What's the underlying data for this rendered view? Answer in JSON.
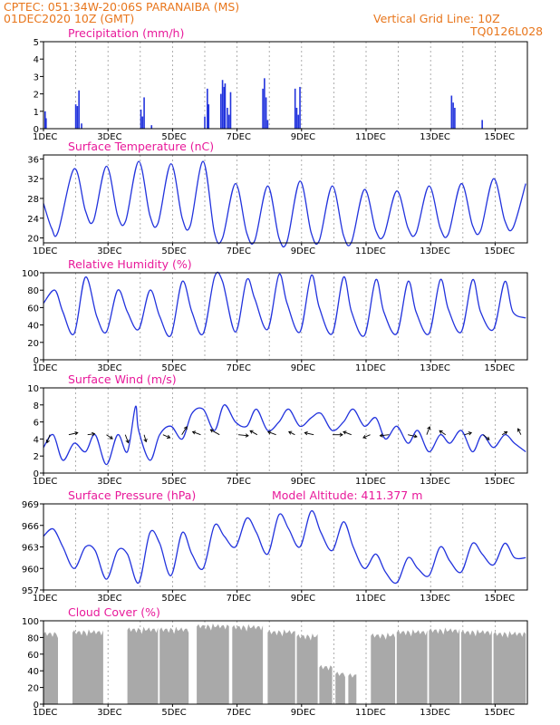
{
  "header": {
    "line1": "CPTEC:   051:34W-20:06S   PARANAIBA (MS)",
    "line2": "01DEC2020 10Z (GMT)",
    "grid_note": "Vertical Grid Line: 10Z",
    "code": "TQ0126L028",
    "model_altitude": "Model Altitude: 411.377 m"
  },
  "x_ticks": [
    "1DEC",
    "3DEC",
    "5DEC",
    "7DEC",
    "9DEC",
    "11DEC",
    "13DEC",
    "15DEC"
  ],
  "colors": {
    "header": "#e8761c",
    "title": "#e8199a",
    "series": "#2233dd",
    "cloud": "#a9a9a9"
  },
  "chart_data": [
    {
      "type": "bar",
      "title": "Precipitation (mm/h)",
      "ylim": [
        0,
        5
      ],
      "yticks": [
        "0",
        "1",
        "2",
        "3",
        "4",
        "5"
      ],
      "x_range_days": [
        1.0,
        16.0
      ],
      "series": [
        {
          "x": [
            1.05,
            1.08,
            2.0,
            2.05,
            2.1,
            2.18,
            4.02,
            4.07,
            4.12,
            4.35,
            6.0,
            6.08,
            6.12,
            6.5,
            6.55,
            6.6,
            6.63,
            6.7,
            6.75,
            6.8,
            7.8,
            7.85,
            7.9,
            7.95,
            8.8,
            8.85,
            8.9,
            8.95,
            13.65,
            13.7,
            13.75,
            14.6
          ],
          "values": [
            1.0,
            0.6,
            1.4,
            1.3,
            2.2,
            0.3,
            1.1,
            0.7,
            1.8,
            0.2,
            0.7,
            2.3,
            1.4,
            2.0,
            2.8,
            2.4,
            2.6,
            1.2,
            0.8,
            2.1,
            2.3,
            2.9,
            1.8,
            0.5,
            2.3,
            1.2,
            0.8,
            2.4,
            1.9,
            1.5,
            1.2,
            0.5
          ]
        }
      ]
    },
    {
      "type": "line",
      "title": "Surface Temperature (nC)",
      "ylim": [
        19,
        36.8
      ],
      "yticks": [
        "20",
        "24",
        "28",
        "32",
        "36"
      ],
      "series": [
        {
          "x": [
            1.0,
            1.25,
            1.45,
            1.95,
            2.3,
            2.55,
            2.95,
            3.3,
            3.55,
            3.95,
            4.3,
            4.55,
            4.95,
            5.3,
            5.55,
            5.95,
            6.3,
            6.55,
            6.95,
            7.3,
            7.55,
            7.95,
            8.3,
            8.55,
            8.95,
            9.3,
            9.55,
            9.95,
            10.3,
            10.55,
            10.95,
            11.3,
            11.55,
            11.95,
            12.3,
            12.55,
            12.95,
            13.3,
            13.55,
            13.95,
            14.3,
            14.55,
            14.95,
            15.3,
            15.55,
            15.95
          ],
          "values": [
            27.0,
            22.0,
            21.2,
            34.0,
            25.5,
            23.5,
            34.5,
            24.5,
            23.5,
            35.5,
            24.5,
            23.0,
            35.0,
            24.0,
            22.5,
            35.5,
            21.0,
            20.0,
            31.0,
            21.0,
            19.5,
            30.5,
            20.0,
            19.3,
            31.5,
            21.0,
            19.5,
            30.5,
            20.5,
            19.2,
            29.8,
            21.5,
            20.5,
            29.5,
            22.0,
            21.0,
            30.5,
            22.0,
            20.8,
            31.0,
            22.5,
            21.5,
            32.0,
            23.5,
            22.0,
            31.0
          ]
        }
      ]
    },
    {
      "type": "line",
      "title": "Relative Humidity (%)",
      "ylim": [
        0,
        100
      ],
      "yticks": [
        "0",
        "20",
        "40",
        "60",
        "80",
        "100"
      ],
      "series": [
        {
          "x": [
            1.0,
            1.35,
            1.6,
            1.95,
            2.3,
            2.65,
            2.95,
            3.3,
            3.6,
            3.95,
            4.3,
            4.6,
            4.95,
            5.3,
            5.6,
            5.95,
            6.3,
            6.55,
            6.95,
            7.3,
            7.55,
            7.95,
            8.3,
            8.55,
            8.95,
            9.3,
            9.55,
            9.95,
            10.3,
            10.55,
            10.95,
            11.3,
            11.55,
            11.95,
            12.3,
            12.55,
            12.95,
            13.3,
            13.55,
            13.95,
            14.3,
            14.55,
            14.95,
            15.3,
            15.55,
            15.95
          ],
          "values": [
            65.0,
            80.0,
            55.0,
            30.0,
            95.0,
            50.0,
            32.0,
            80.0,
            55.0,
            35.0,
            80.0,
            50.0,
            28.0,
            90.0,
            55.0,
            30.0,
            95.0,
            90.0,
            32.0,
            92.0,
            70.0,
            35.0,
            98.0,
            65.0,
            32.0,
            97.0,
            60.0,
            30.0,
            95.0,
            55.0,
            28.0,
            92.0,
            55.0,
            30.0,
            90.0,
            55.0,
            30.0,
            92.0,
            58.0,
            32.0,
            92.0,
            55.0,
            35.0,
            90.0,
            55.0,
            48.0
          ]
        }
      ]
    },
    {
      "type": "line",
      "title": "Surface Wind (m/s)",
      "ylim": [
        0,
        10
      ],
      "yticks": [
        "0",
        "2",
        "4",
        "6",
        "8",
        "10"
      ],
      "series": [
        {
          "x": [
            1.0,
            1.3,
            1.6,
            1.95,
            2.3,
            2.6,
            2.95,
            3.3,
            3.6,
            3.85,
            3.95,
            4.3,
            4.6,
            4.95,
            5.3,
            5.6,
            5.95,
            6.3,
            6.6,
            6.95,
            7.3,
            7.6,
            7.95,
            8.3,
            8.6,
            8.95,
            9.3,
            9.6,
            9.95,
            10.3,
            10.6,
            10.95,
            11.3,
            11.6,
            11.95,
            12.3,
            12.6,
            12.95,
            13.3,
            13.6,
            13.95,
            14.3,
            14.6,
            14.95,
            15.3,
            15.6,
            15.95
          ],
          "values": [
            3.0,
            4.5,
            1.5,
            3.5,
            2.5,
            4.5,
            1.0,
            4.5,
            2.5,
            7.8,
            5.0,
            1.5,
            4.5,
            5.5,
            4.0,
            7.0,
            7.5,
            5.0,
            8.0,
            6.0,
            5.5,
            7.5,
            5.0,
            6.0,
            7.5,
            5.5,
            6.5,
            7.0,
            5.0,
            6.0,
            7.5,
            5.5,
            6.5,
            4.0,
            5.5,
            3.5,
            5.0,
            2.5,
            4.5,
            3.5,
            5.0,
            2.5,
            4.5,
            3.0,
            4.5,
            3.5,
            2.5
          ]
        }
      ],
      "vectors_uv": [
        [
          -0.3,
          -0.8
        ],
        [
          0.9,
          0.2
        ],
        [
          0.7,
          0.1
        ],
        [
          0.6,
          -0.4
        ],
        [
          0.3,
          -0.8
        ],
        [
          0.2,
          -0.7
        ],
        [
          0.7,
          -0.3
        ],
        [
          0.5,
          0.8
        ],
        [
          -0.8,
          0.3
        ],
        [
          -0.9,
          0.5
        ],
        [
          1.0,
          -0.1
        ],
        [
          -0.7,
          0.4
        ],
        [
          -0.8,
          0.3
        ],
        [
          -0.6,
          0.3
        ],
        [
          -0.9,
          0.2
        ],
        [
          1.0,
          0.0
        ],
        [
          -0.8,
          0.3
        ],
        [
          -0.7,
          -0.3
        ],
        [
          -0.9,
          -0.1
        ],
        [
          0.9,
          -0.2
        ],
        [
          0.3,
          0.8
        ],
        [
          -0.6,
          0.4
        ],
        [
          0.7,
          0.2
        ],
        [
          0.6,
          -0.5
        ],
        [
          0.5,
          0.3
        ],
        [
          -0.3,
          0.6
        ]
      ]
    },
    {
      "type": "line",
      "title": "Surface Pressure (hPa)",
      "ylim": [
        957,
        969
      ],
      "yticks": [
        "957",
        "960",
        "963",
        "966",
        "969"
      ],
      "series": [
        {
          "x": [
            1.0,
            1.3,
            1.6,
            1.95,
            2.3,
            2.6,
            2.95,
            3.3,
            3.6,
            3.95,
            4.3,
            4.6,
            4.95,
            5.3,
            5.6,
            5.95,
            6.3,
            6.6,
            6.95,
            7.3,
            7.6,
            7.95,
            8.3,
            8.6,
            8.95,
            9.3,
            9.6,
            9.95,
            10.3,
            10.6,
            10.95,
            11.3,
            11.6,
            11.95,
            12.3,
            12.6,
            12.95,
            13.3,
            13.6,
            13.95,
            14.3,
            14.6,
            14.95,
            15.3,
            15.6,
            15.95
          ],
          "values": [
            964.5,
            965.5,
            963.0,
            960.0,
            963.0,
            962.5,
            958.5,
            962.5,
            962.0,
            958.0,
            965.0,
            963.5,
            959.0,
            965.0,
            962.0,
            960.0,
            966.0,
            964.5,
            963.0,
            967.0,
            965.0,
            962.0,
            967.5,
            965.5,
            963.0,
            968.0,
            965.0,
            962.5,
            966.5,
            963.0,
            960.0,
            962.0,
            959.5,
            958.0,
            961.5,
            960.0,
            959.0,
            963.0,
            961.0,
            959.5,
            963.5,
            962.0,
            960.5,
            963.5,
            961.5,
            961.5
          ]
        }
      ]
    },
    {
      "type": "bar",
      "title": "Cloud Cover (%)",
      "ylim": [
        0,
        100
      ],
      "yticks": [
        "0",
        "20",
        "40",
        "60",
        "80",
        "100"
      ],
      "segments": [
        {
          "x": [
            1.0,
            1.45
          ],
          "level": 88
        },
        {
          "x": [
            1.9,
            2.85
          ],
          "level": 90
        },
        {
          "x": [
            3.6,
            4.55
          ],
          "level": 93
        },
        {
          "x": [
            4.6,
            5.5
          ],
          "level": 93
        },
        {
          "x": [
            5.75,
            6.75
          ],
          "level": 97
        },
        {
          "x": [
            6.85,
            7.8
          ],
          "level": 96
        },
        {
          "x": [
            7.95,
            8.8
          ],
          "level": 90
        },
        {
          "x": [
            8.85,
            9.5
          ],
          "level": 85
        },
        {
          "x": [
            9.55,
            9.95
          ],
          "level": 48
        },
        {
          "x": [
            10.05,
            10.35
          ],
          "level": 40
        },
        {
          "x": [
            10.45,
            10.7
          ],
          "level": 38
        },
        {
          "x": [
            11.15,
            11.9
          ],
          "level": 86
        },
        {
          "x": [
            11.95,
            12.9
          ],
          "level": 90
        },
        {
          "x": [
            12.95,
            13.9
          ],
          "level": 92
        },
        {
          "x": [
            13.95,
            14.9
          ],
          "level": 90
        },
        {
          "x": [
            14.95,
            15.95
          ],
          "level": 88
        }
      ]
    }
  ]
}
